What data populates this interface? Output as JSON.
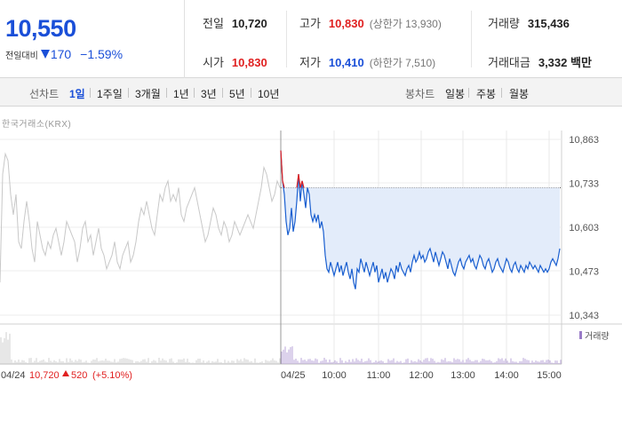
{
  "summary": {
    "price": "10,550",
    "diff_label": "전일대비",
    "diff_value": "170",
    "diff_rate": "−1.59%"
  },
  "stats": {
    "prev_close": {
      "label": "전일",
      "value": "10,720"
    },
    "open": {
      "label": "시가",
      "value": "10,830"
    },
    "high": {
      "label": "고가",
      "value": "10,830",
      "sub": "(상한가 13,930)"
    },
    "low": {
      "label": "저가",
      "value": "10,410",
      "sub": "(하한가 7,510)"
    },
    "volume": {
      "label": "거래량",
      "value": "315,436"
    },
    "turnover": {
      "label": "거래대금",
      "value": "3,332 백만"
    }
  },
  "toolbar": {
    "line_chart_label": "선차트",
    "ranges": [
      "1일",
      "1주일",
      "3개월",
      "1년",
      "3년",
      "5년",
      "10년"
    ],
    "active_range": "1일",
    "candle_label": "봉차트",
    "candles": [
      "일봉",
      "주봉",
      "월봉"
    ]
  },
  "source": "한국거래소(KRX)",
  "colors": {
    "up": "#e02020",
    "down": "#1a4fd8",
    "prev_day_line": "#c8c8c8",
    "fill": "#e3ecfa"
  },
  "chart_data": {
    "type": "line",
    "y_ticks": [
      "10,863",
      "10,733",
      "10,603",
      "10,473",
      "10,343"
    ],
    "ylim": [
      10343,
      10863
    ],
    "x_ticks": [
      "04/25",
      "10:00",
      "11:00",
      "12:00",
      "13:00",
      "14:00",
      "15:00"
    ],
    "prev_day_label": "04/24",
    "prev_day_close_text": "10,720",
    "prev_day_change_text": "520",
    "prev_day_rate_text": "(+5.10%)",
    "volume_legend": "거래량",
    "reference_price": 10720,
    "series": [
      {
        "key": "prev",
        "x": [
          0,
          3,
          6,
          9,
          12,
          15,
          18,
          21,
          24,
          27,
          30,
          33,
          36,
          39,
          42,
          45,
          48,
          51,
          54,
          57,
          60,
          63,
          66,
          69,
          72,
          75,
          78,
          81,
          84,
          87,
          90,
          93,
          96,
          99,
          102,
          105,
          108,
          111,
          114,
          117,
          120,
          123,
          126,
          129,
          132,
          135,
          138,
          141,
          144,
          147,
          150,
          153,
          156,
          159,
          162,
          165,
          168,
          171,
          174,
          177,
          180,
          183,
          186,
          189,
          192,
          195,
          198,
          201,
          204,
          207,
          210,
          213,
          216,
          219,
          222,
          225,
          228,
          231,
          234,
          237,
          240,
          243,
          246,
          249,
          252,
          255,
          258,
          261,
          264,
          267,
          270,
          273,
          276,
          279,
          282,
          285,
          288,
          291,
          294,
          297,
          300,
          303,
          306,
          309,
          312,
          315
        ],
        "values": [
          10440,
          10760,
          10820,
          10800,
          10700,
          10640,
          10700,
          10560,
          10540,
          10620,
          10680,
          10620,
          10540,
          10500,
          10620,
          10580,
          10540,
          10520,
          10560,
          10540,
          10580,
          10600,
          10560,
          10520,
          10560,
          10620,
          10600,
          10580,
          10560,
          10500,
          10540,
          10600,
          10620,
          10560,
          10580,
          10520,
          10560,
          10600,
          10540,
          10520,
          10480,
          10500,
          10520,
          10560,
          10500,
          10480,
          10520,
          10540,
          10560,
          10500,
          10520,
          10560,
          10620,
          10660,
          10640,
          10680,
          10640,
          10600,
          10580,
          10640,
          10700,
          10680,
          10720,
          10740,
          10680,
          10700,
          10680,
          10720,
          10640,
          10620,
          10660,
          10680,
          10700,
          10720,
          10680,
          10640,
          10600,
          10560,
          10580,
          10620,
          10660,
          10640,
          10600,
          10580,
          10620,
          10600,
          10560,
          10580,
          10620,
          10600,
          10580,
          10600,
          10620,
          10640,
          10620,
          10600,
          10640,
          10680,
          10720,
          10780,
          10760,
          10720,
          10680,
          10700,
          10740,
          10720
        ],
        "color": "#c8c8c8"
      },
      {
        "key": "today",
        "x": [
          316,
          318,
          320,
          322,
          324,
          326,
          328,
          330,
          332,
          334,
          336,
          338,
          340,
          342,
          344,
          346,
          348,
          350,
          352,
          354,
          356,
          358,
          360,
          362,
          364,
          366,
          368,
          370,
          372,
          374,
          376,
          378,
          380,
          382,
          384,
          386,
          388,
          390,
          392,
          394,
          396,
          398,
          400,
          402,
          404,
          406,
          408,
          410,
          412,
          414,
          416,
          418,
          420,
          422,
          424,
          426,
          428,
          430,
          432,
          434,
          436,
          438,
          440,
          442,
          444,
          446,
          448,
          450,
          452,
          454,
          456,
          458,
          460,
          462,
          464,
          466,
          468,
          470,
          472,
          474,
          476,
          478,
          480,
          482,
          484,
          486,
          488,
          490,
          492,
          494,
          496,
          498,
          500,
          502,
          504,
          506,
          508,
          510,
          512,
          514,
          516,
          518,
          520,
          522,
          524,
          526,
          528,
          530,
          532,
          534,
          536,
          538,
          540,
          542,
          544,
          546,
          548,
          550,
          552,
          554,
          556,
          558,
          560,
          562,
          564,
          566,
          568,
          570,
          572,
          574,
          576,
          578,
          580,
          582,
          584,
          586,
          588,
          590,
          592,
          594,
          596,
          598,
          600,
          602,
          604,
          606,
          608,
          610,
          612,
          614,
          616,
          618,
          620,
          622,
          624,
          626,
          628,
          630
        ],
        "values": [
          10830,
          10740,
          10700,
          10620,
          10580,
          10600,
          10660,
          10590,
          10620,
          10680,
          10760,
          10680,
          10740,
          10700,
          10660,
          10720,
          10700,
          10640,
          10620,
          10640,
          10620,
          10640,
          10600,
          10620,
          10590,
          10520,
          10480,
          10470,
          10500,
          10480,
          10460,
          10480,
          10500,
          10470,
          10490,
          10460,
          10480,
          10500,
          10470,
          10450,
          10480,
          10440,
          10420,
          10480,
          10470,
          10510,
          10490,
          10470,
          10500,
          10480,
          10460,
          10480,
          10500,
          10470,
          10490,
          10440,
          10460,
          10480,
          10450,
          10470,
          10440,
          10460,
          10480,
          10470,
          10450,
          10490,
          10470,
          10500,
          10480,
          10470,
          10460,
          10480,
          10490,
          10470,
          10500,
          10520,
          10500,
          10510,
          10530,
          10510,
          10520,
          10500,
          10510,
          10530,
          10540,
          10520,
          10500,
          10530,
          10510,
          10490,
          10510,
          10530,
          10520,
          10500,
          10480,
          10510,
          10490,
          10470,
          10460,
          10480,
          10500,
          10510,
          10490,
          10480,
          10500,
          10510,
          10520,
          10500,
          10510,
          10490,
          10480,
          10500,
          10520,
          10510,
          10490,
          10480,
          10500,
          10510,
          10490,
          10470,
          10480,
          10500,
          10510,
          10490,
          10480,
          10470,
          10490,
          10510,
          10500,
          10480,
          10470,
          10490,
          10500,
          10480,
          10470,
          10490,
          10480,
          10470,
          10490,
          10480,
          10500,
          10490,
          10480,
          10490,
          10480,
          10470,
          10490,
          10480,
          10470,
          10480,
          10470,
          10480,
          10500,
          10510,
          10500,
          10490,
          10510,
          10540
        ],
        "color": "#1a5fd0"
      }
    ]
  }
}
